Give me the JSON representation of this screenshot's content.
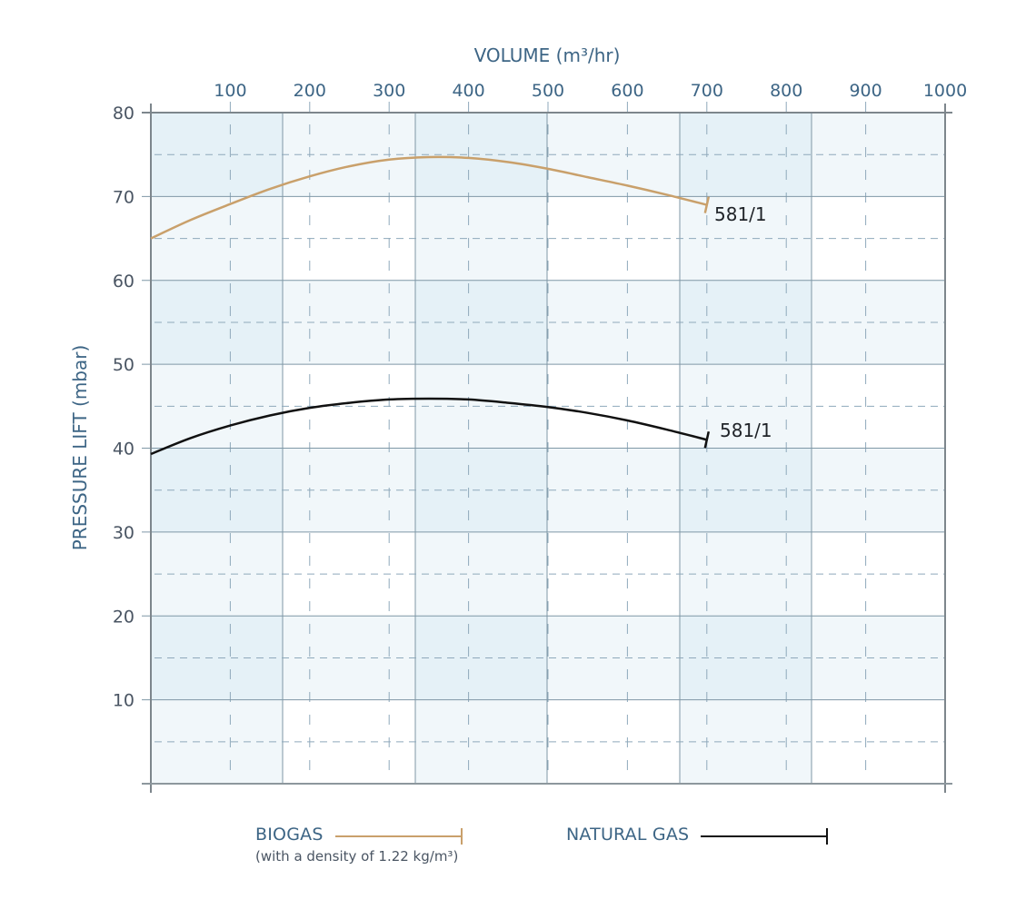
{
  "chart_data": {
    "type": "line",
    "title": "",
    "xlabel": "VOLUME (m³/hr)",
    "ylabel": "PRESSURE LIFT (mbar)",
    "xlim": [
      0,
      1000
    ],
    "ylim": [
      0,
      80
    ],
    "x_ticks": [
      100,
      200,
      300,
      400,
      500,
      600,
      700,
      800,
      900,
      1000
    ],
    "y_ticks": [
      10,
      20,
      30,
      40,
      50,
      60,
      70,
      80
    ],
    "x_axis_position": "top",
    "grid": true,
    "series": [
      {
        "name": "BIOGAS",
        "color": "#c9a06b",
        "end_label": "581/1",
        "x": [
          0,
          50,
          100,
          150,
          200,
          250,
          300,
          350,
          400,
          450,
          500,
          550,
          600,
          650,
          700
        ],
        "y": [
          65.0,
          67.2,
          69.1,
          70.9,
          72.4,
          73.6,
          74.4,
          74.7,
          74.6,
          74.1,
          73.3,
          72.3,
          71.3,
          70.2,
          69.0
        ]
      },
      {
        "name": "NATURAL GAS",
        "color": "#111111",
        "end_label": "581/1",
        "x": [
          0,
          50,
          100,
          150,
          200,
          250,
          300,
          350,
          400,
          450,
          500,
          550,
          600,
          650,
          700
        ],
        "y": [
          39.3,
          41.2,
          42.7,
          43.9,
          44.8,
          45.4,
          45.8,
          45.9,
          45.8,
          45.4,
          44.9,
          44.2,
          43.3,
          42.2,
          41.0
        ]
      }
    ],
    "legend": [
      {
        "label": "BIOGAS",
        "sublabel": "(with a density of 1.22 kg/m³)",
        "color": "#c9a06b"
      },
      {
        "label": "NATURAL GAS",
        "color": "#111111"
      }
    ],
    "legend_position": "bottom"
  },
  "axes": {
    "x_title": "VOLUME (m³/hr)",
    "y_title": "PRESSURE LIFT (mbar)",
    "x_tick_labels": [
      "100",
      "200",
      "300",
      "400",
      "500",
      "600",
      "700",
      "800",
      "900",
      "1000"
    ],
    "y_tick_labels": [
      "80",
      "70",
      "60",
      "50",
      "40",
      "30",
      "20",
      "10"
    ]
  },
  "curves": {
    "biogas_label": "581/1",
    "natural_gas_label": "581/1"
  },
  "legend": {
    "biogas": "BIOGAS",
    "biogas_note": "(with a density of 1.22 kg/m³)",
    "natural_gas": "NATURAL GAS"
  },
  "colors": {
    "biogas": "#c9a06b",
    "natural_gas": "#111111",
    "axis_text": "#3d6585",
    "band_dark": "#e5f1f7",
    "band_light": "#f1f7fa",
    "grid_solid": "#7f97a6",
    "grid_dashed": "#8fa9bb"
  }
}
